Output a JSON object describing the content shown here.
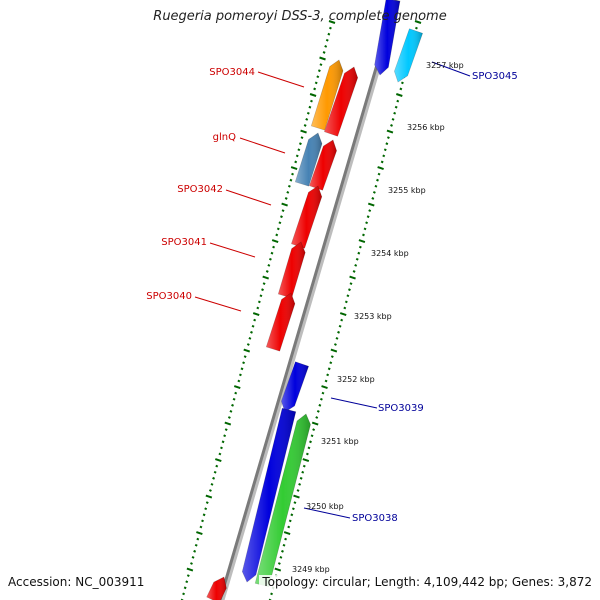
{
  "title": "Ruegeria pomeroyi DSS-3, complete genome",
  "footer": {
    "accession": "Accession: NC_003911",
    "summary": "Topology: circular; Length: 4,109,442 bp; Genes: 3,872"
  },
  "colors": {
    "reverse_strand_gene": "#ee0000",
    "forward_strand_gene": "#0000dd",
    "orange_gene": "#ff9900",
    "steelblue_gene": "#4682b4",
    "green_gene": "#33cc33",
    "cyan_gene": "#00c8ff",
    "reverse_label": "#cc0000",
    "forward_label": "#000099",
    "tick": "#006600",
    "backbone": "#7a7a7a"
  },
  "scale_labels": [
    {
      "kbp": 3257,
      "text": "3257 kbp"
    },
    {
      "kbp": 3256,
      "text": "3256 kbp"
    },
    {
      "kbp": 3255,
      "text": "3255 kbp"
    },
    {
      "kbp": 3254,
      "text": "3254 kbp"
    },
    {
      "kbp": 3253,
      "text": "3253 kbp"
    },
    {
      "kbp": 3252,
      "text": "3252 kbp"
    },
    {
      "kbp": 3251,
      "text": "3251 kbp"
    },
    {
      "kbp": 3250,
      "text": "3250 kbp"
    },
    {
      "kbp": 3249,
      "text": "3249 kbp"
    }
  ],
  "gene_labels": [
    {
      "text": "SPO3045",
      "strand": "forward"
    },
    {
      "text": "SPO3044",
      "strand": "reverse"
    },
    {
      "text": "glnQ",
      "strand": "reverse"
    },
    {
      "text": "SPO3042",
      "strand": "reverse"
    },
    {
      "text": "SPO3041",
      "strand": "reverse"
    },
    {
      "text": "SPO3040",
      "strand": "reverse"
    },
    {
      "text": "SPO3039",
      "strand": "forward"
    },
    {
      "text": "SPO3038",
      "strand": "forward"
    }
  ],
  "genes": [
    {
      "id": "gene-blue-top",
      "color": "forward_strand_gene",
      "strand": "forward"
    },
    {
      "id": "gene-cyan-SPO3045",
      "color": "cyan_gene",
      "strand": "forward"
    },
    {
      "id": "gene-orange-SPO3044",
      "color": "orange_gene",
      "strand": "reverse"
    },
    {
      "id": "gene-red-1",
      "color": "reverse_strand_gene",
      "strand": "reverse"
    },
    {
      "id": "gene-steelblue-glnQ",
      "color": "steelblue_gene",
      "strand": "reverse"
    },
    {
      "id": "gene-red-2",
      "color": "reverse_strand_gene",
      "strand": "reverse"
    },
    {
      "id": "gene-red-SPO3042",
      "color": "reverse_strand_gene",
      "strand": "reverse"
    },
    {
      "id": "gene-red-SPO3041",
      "color": "reverse_strand_gene",
      "strand": "reverse"
    },
    {
      "id": "gene-red-SPO3040",
      "color": "reverse_strand_gene",
      "strand": "reverse"
    },
    {
      "id": "gene-blue-SPO3039",
      "color": "forward_strand_gene",
      "strand": "forward"
    },
    {
      "id": "gene-blue-large",
      "color": "forward_strand_gene",
      "strand": "forward"
    },
    {
      "id": "gene-green-SPO3038",
      "color": "green_gene",
      "strand": "forward"
    },
    {
      "id": "gene-red-bottom",
      "color": "reverse_strand_gene",
      "strand": "reverse"
    }
  ]
}
